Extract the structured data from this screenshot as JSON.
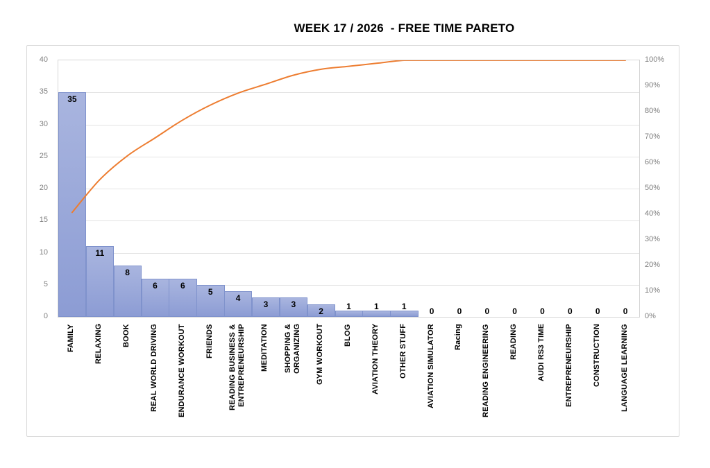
{
  "chart_data": {
    "type": "bar",
    "subtype": "pareto",
    "title": "WEEK 17 / 2026  - FREE TIME PARETO",
    "categories": [
      "FAMILY",
      "RELAXING",
      "BOOK",
      "REAL WORLD DRIVING",
      "ENDURANCE WORKOUT",
      "FRIENDS",
      "READING BUSINESS &\nENTREPRENEURSHIP",
      "MEDITATION",
      "SHOPPING &\nORGANIZING",
      "GYM WORKOUT",
      "BLOG",
      "AVIATION THEORY",
      "OTHER STUFF",
      "AVIATION SIMULATOR",
      "Racing",
      "READING ENGINEERING",
      "READING",
      "AUDI RS3 TIME",
      "ENTREPRENEURSHIP",
      "CONSTRUCTION",
      "LANGUAGE LEARNING"
    ],
    "series": [
      {
        "name": "hours-bars",
        "type": "bar",
        "axis": "left",
        "values": [
          35,
          11,
          8,
          6,
          6,
          5,
          4,
          3,
          3,
          2,
          1,
          1,
          1,
          0,
          0,
          0,
          0,
          0,
          0,
          0,
          0
        ]
      },
      {
        "name": "cumulative-percent-line",
        "type": "line",
        "axis": "right",
        "values": [
          40.7,
          53.49,
          62.79,
          69.77,
          76.74,
          82.56,
          87.21,
          90.7,
          94.19,
          96.51,
          97.67,
          98.84,
          100,
          100,
          100,
          100,
          100,
          100,
          100,
          100,
          100
        ]
      }
    ],
    "data_labels": [
      "35",
      "11",
      "8",
      "6",
      "6",
      "5",
      "4",
      "3",
      "3",
      "2",
      "1",
      "1",
      "1",
      "0",
      "0",
      "0",
      "0",
      "0",
      "0",
      "0",
      "0"
    ],
    "y_axis_left": {
      "min": 0,
      "max": 40,
      "step": 5,
      "ticks": [
        "0",
        "5",
        "10",
        "15",
        "20",
        "25",
        "30",
        "35",
        "40"
      ]
    },
    "y_axis_right": {
      "min": 0,
      "max": 100,
      "step": 10,
      "ticks": [
        "0%",
        "10%",
        "20%",
        "30%",
        "40%",
        "50%",
        "60%",
        "70%",
        "80%",
        "90%",
        "100%"
      ]
    },
    "grid": "horizontal",
    "legend": "none",
    "colors": {
      "bar_top": "#A9B5DF",
      "bar_bottom": "#8C9CD4",
      "bar_border": "#7F92CC",
      "line": "#ED7D31",
      "gridline": "#E3E3E3",
      "plot_border": "#D6D6D6",
      "frame_border": "#D9D9D9",
      "tick_text": "#7F7F7F",
      "label_text": "#000000"
    }
  }
}
